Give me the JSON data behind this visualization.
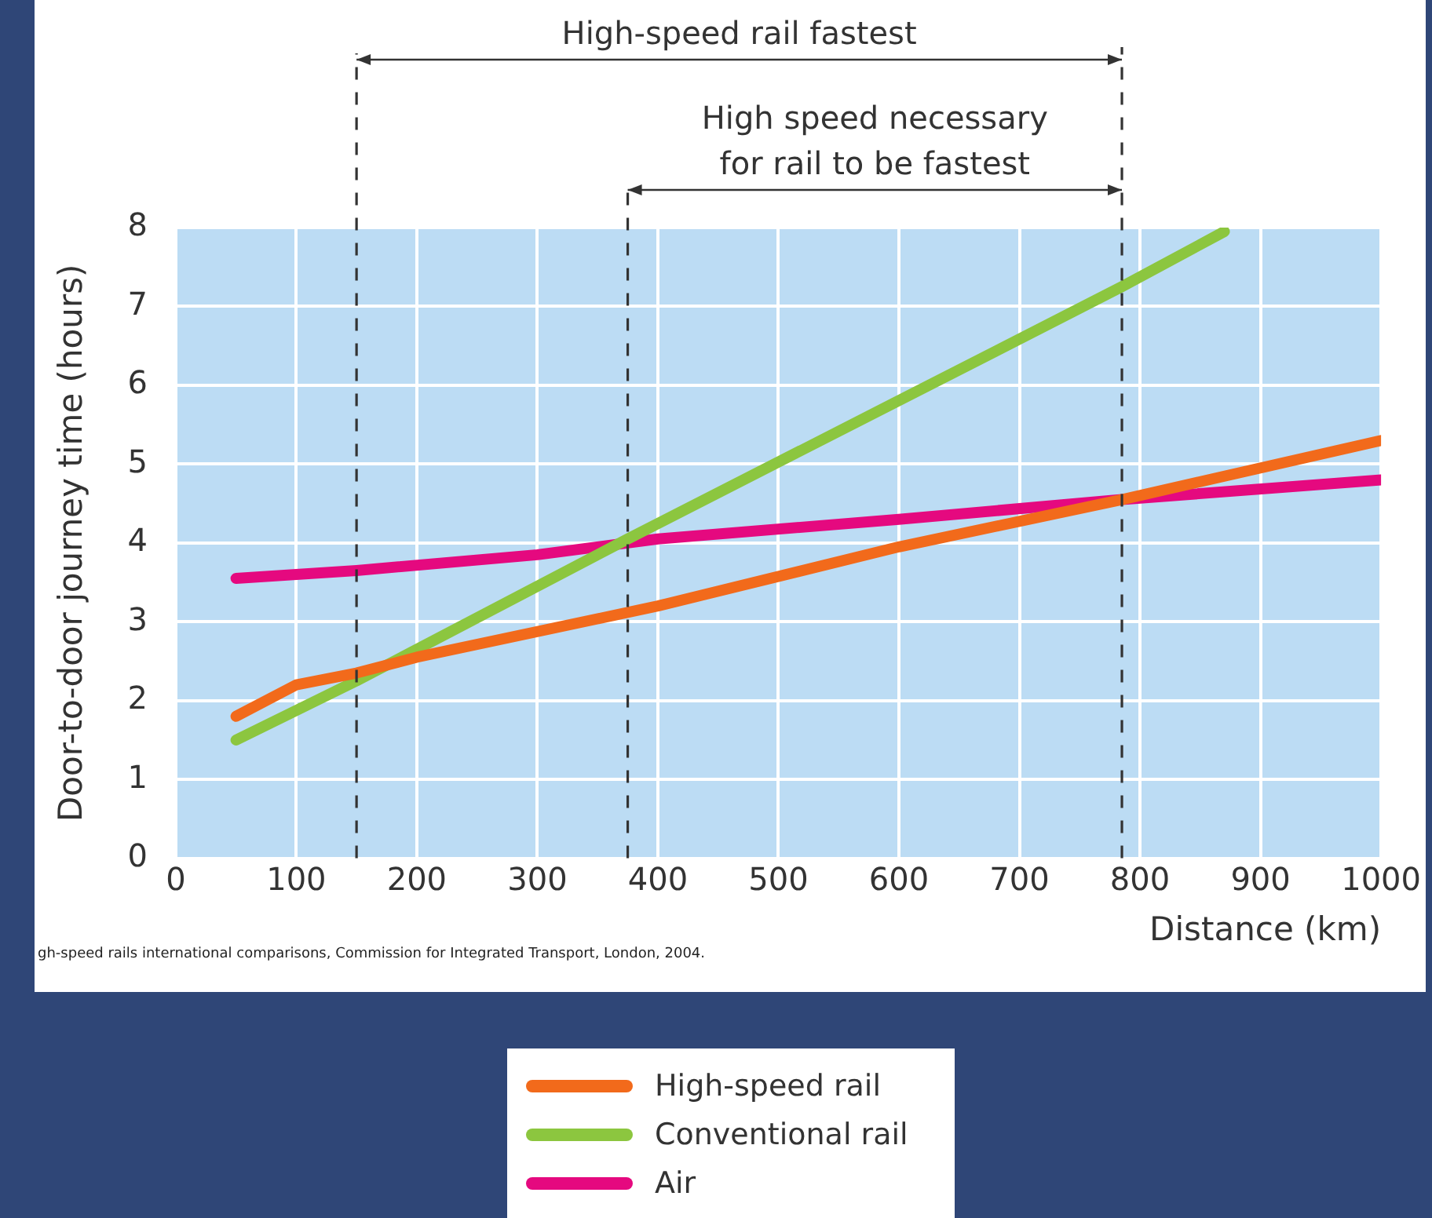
{
  "chart_data": {
    "type": "line",
    "xlabel": "Distance (km)",
    "ylabel": "Door-to-door journey time (hours)",
    "xlim": [
      0,
      1000
    ],
    "xticks": [
      0,
      100,
      200,
      300,
      400,
      500,
      600,
      700,
      800,
      900,
      1000
    ],
    "ylim": [
      0,
      8
    ],
    "yticks": [
      0,
      1,
      2,
      3,
      4,
      5,
      6,
      7,
      8
    ],
    "grid": true,
    "legend": "bottom",
    "marker": "none",
    "series": [
      {
        "name": "High-speed rail",
        "color": "#f26a1b",
        "x": [
          50,
          100,
          150,
          200,
          400,
          600,
          785,
          1000
        ],
        "values": [
          1.8,
          2.2,
          2.35,
          2.55,
          3.2,
          3.95,
          4.55,
          5.3
        ]
      },
      {
        "name": "Conventional rail",
        "color": "#8cc63f",
        "x": [
          50,
          150,
          375,
          785,
          870
        ],
        "values": [
          1.5,
          2.25,
          4.05,
          7.25,
          7.95
        ]
      },
      {
        "name": "Air",
        "color": "#e5097f",
        "x": [
          50,
          150,
          300,
          400,
          600,
          785,
          1000
        ],
        "values": [
          3.55,
          3.65,
          3.85,
          4.05,
          4.3,
          4.55,
          4.8
        ]
      }
    ],
    "ref_lines": [
      {
        "axis": "x",
        "value": 150,
        "line_style": "dashed"
      },
      {
        "axis": "x",
        "value": 375,
        "line_style": "dashed"
      },
      {
        "axis": "x",
        "value": 785,
        "line_style": "dashed"
      }
    ],
    "annotations": [
      "High-speed rail fastest",
      "High speed necessary\nfor rail to be fastest",
      "gh-speed rails international comparisons, Commission for Integrated Transport, London, 2004."
    ]
  }
}
